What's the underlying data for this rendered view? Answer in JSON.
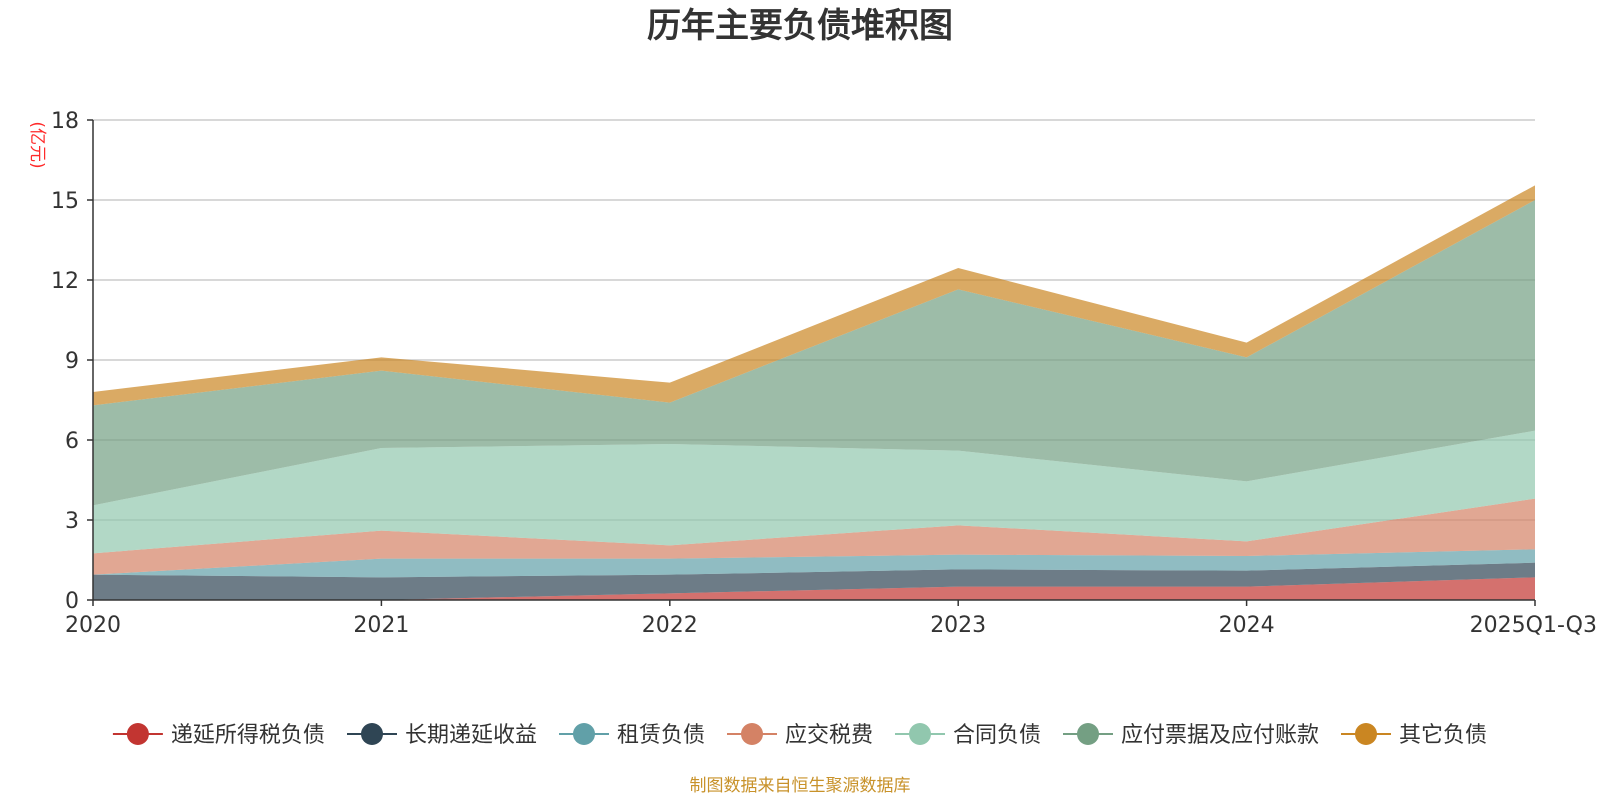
{
  "chart_data": {
    "type": "area",
    "stacked": true,
    "title": "历年主要负债堆积图",
    "ylabel": "(亿元)",
    "xlabel": "",
    "ylim": [
      0,
      18
    ],
    "yticks": [
      0,
      3,
      6,
      9,
      12,
      15,
      18
    ],
    "grid": true,
    "legend_position": "bottom",
    "categories": [
      "2020",
      "2021",
      "2022",
      "2023",
      "2024",
      "2025Q1-Q3"
    ],
    "series": [
      {
        "name": "递延所得税负债",
        "color": "#c23531",
        "values": [
          0.0,
          0.0,
          0.25,
          0.5,
          0.5,
          0.85
        ]
      },
      {
        "name": "长期递延收益",
        "color": "#2f4554",
        "values": [
          0.95,
          0.85,
          0.7,
          0.65,
          0.6,
          0.55
        ]
      },
      {
        "name": "租赁负债",
        "color": "#61a0a8",
        "values": [
          0.0,
          0.7,
          0.6,
          0.55,
          0.55,
          0.5
        ]
      },
      {
        "name": "应交税费",
        "color": "#d48265",
        "values": [
          0.8,
          1.05,
          0.5,
          1.1,
          0.55,
          1.9
        ]
      },
      {
        "name": "合同负债",
        "color": "#91c7ae",
        "values": [
          1.8,
          3.1,
          3.8,
          2.8,
          2.25,
          2.55
        ]
      },
      {
        "name": "应付票据及应付账款",
        "color": "#749f83",
        "values": [
          3.75,
          2.9,
          1.55,
          6.05,
          4.65,
          8.65
        ]
      },
      {
        "name": "其它负债",
        "color": "#ca8622",
        "values": [
          0.5,
          0.5,
          0.75,
          0.8,
          0.55,
          0.55
        ]
      }
    ]
  },
  "source_note": "制图数据来自恒生聚源数据库"
}
